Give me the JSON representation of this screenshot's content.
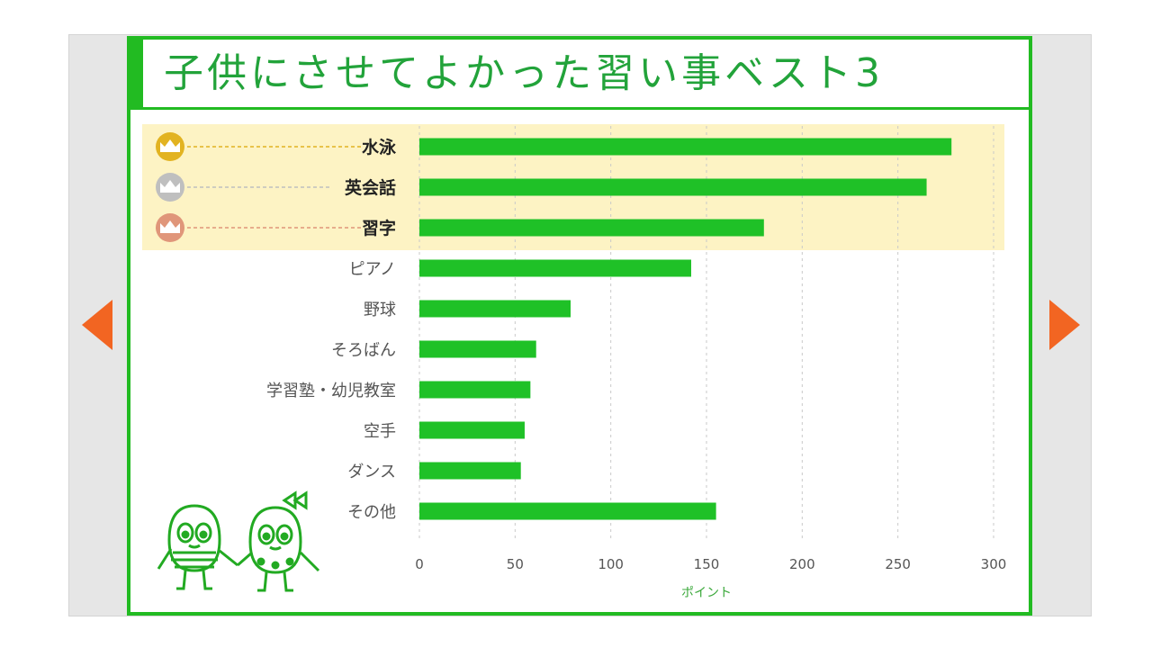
{
  "slide": {
    "title": "子供にさせてよかった習い事ベスト3",
    "colors": {
      "frame": "#22bb22",
      "bar": "#1fc127",
      "title": "#22a33a",
      "highlight_band": "#fdf3c4",
      "nav_arrow": "#f26522",
      "rank_1": "#e2b321",
      "rank_2": "#bfbfbf",
      "rank_3": "#e0967a"
    }
  },
  "navigation": {
    "prev_icon": "triangle-left-icon",
    "next_icon": "triangle-right-icon"
  },
  "chart_data": {
    "type": "bar",
    "orientation": "horizontal",
    "categories": [
      "水泳",
      "英会話",
      "習字",
      "ピアノ",
      "野球",
      "そろばん",
      "学習塾・幼児教室",
      "空手",
      "ダンス",
      "その他"
    ],
    "values": [
      278,
      265,
      180,
      142,
      79,
      61,
      58,
      55,
      53,
      155
    ],
    "highlighted_top": 3,
    "rank_icons": [
      "crown-gold-icon",
      "crown-silver-icon",
      "crown-bronze-icon"
    ],
    "xlabel": "ポイント",
    "xlim": [
      0,
      300
    ],
    "xticks": [
      0,
      50,
      100,
      150,
      200,
      250,
      300
    ],
    "grid": "vertical dashed"
  }
}
